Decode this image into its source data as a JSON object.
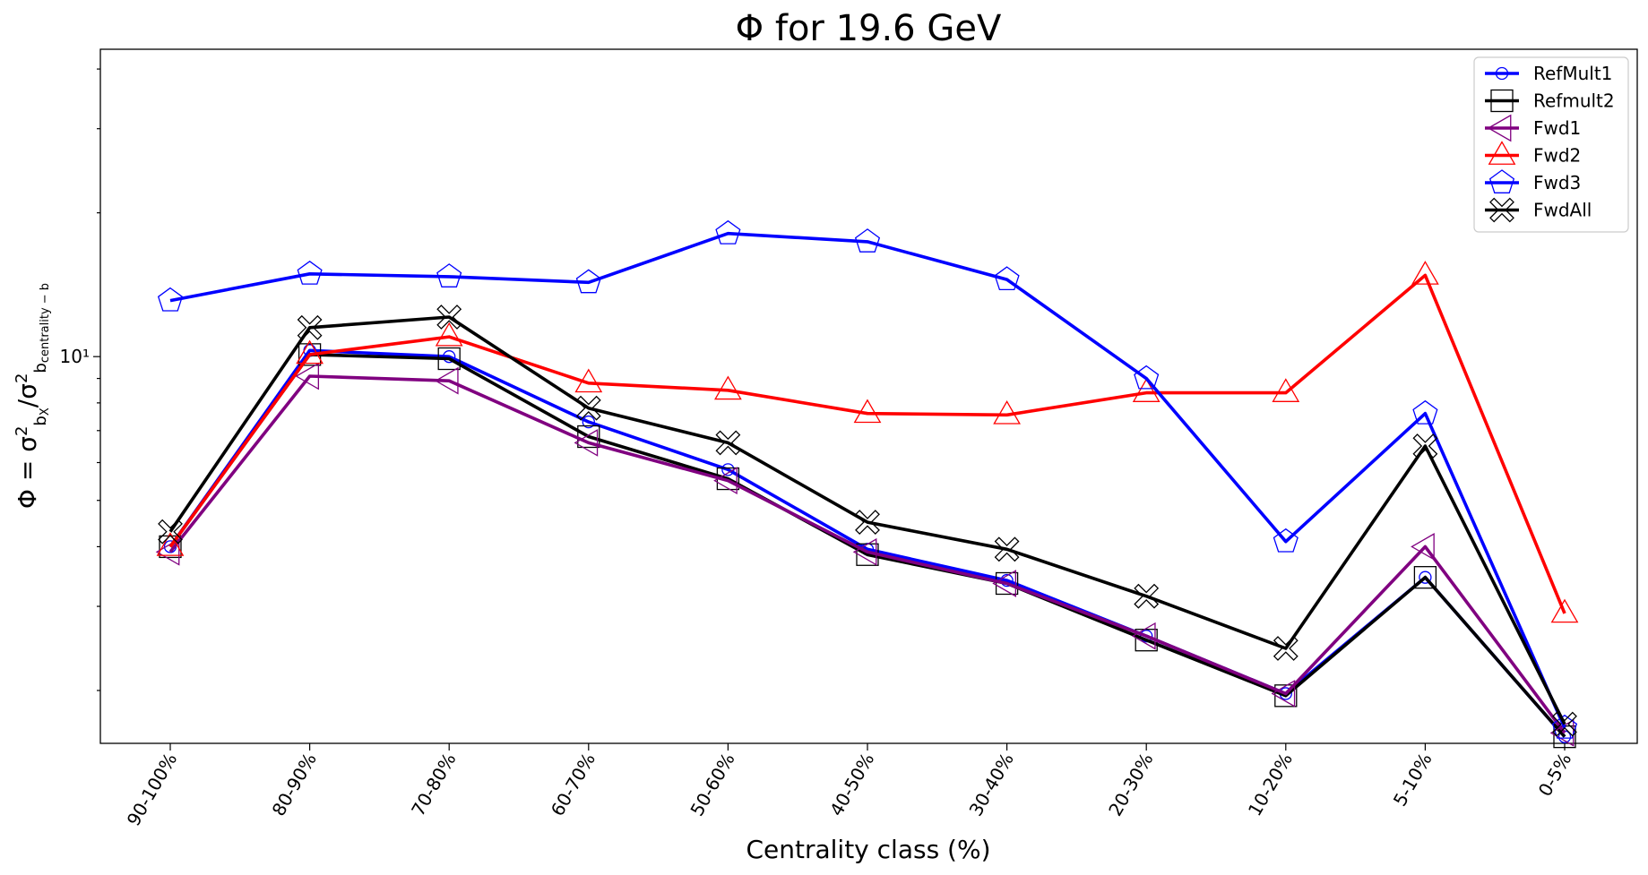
{
  "chart_data": {
    "type": "line",
    "title": "Φ for 19.6 GeV",
    "xlabel": "Centrality class (%)",
    "ylabel": "Φ = σ²_{b_X}/σ²_{b_centrality − b}",
    "yscale": "log",
    "ylim": [
      1.55,
      44
    ],
    "y_tick_label": "10¹",
    "categories": [
      "90-100%",
      "80-90%",
      "70-80%",
      "60-70%",
      "50-60%",
      "40-50%",
      "30-40%",
      "20-30%",
      "10-20%",
      "5-10%",
      "0-5%"
    ],
    "legend_position": "top-right",
    "grid": false,
    "series": [
      {
        "name": "RefMult1",
        "color": "#0000ff",
        "marker": "circle",
        "values": [
          4.0,
          10.3,
          10.0,
          7.3,
          5.8,
          3.95,
          3.4,
          2.6,
          1.97,
          3.45,
          1.6
        ]
      },
      {
        "name": "Refmult2",
        "color": "#000000",
        "marker": "square",
        "values": [
          4.0,
          10.1,
          9.9,
          6.8,
          5.55,
          3.85,
          3.35,
          2.55,
          1.95,
          3.45,
          1.6
        ]
      },
      {
        "name": "Fwd1",
        "color": "#800080",
        "marker": "triangle-left",
        "values": [
          3.9,
          9.1,
          8.9,
          6.6,
          5.5,
          3.9,
          3.35,
          2.6,
          1.97,
          4.0,
          1.63
        ]
      },
      {
        "name": "Fwd2",
        "color": "#ff0000",
        "marker": "triangle-up",
        "values": [
          4.0,
          10.1,
          11.0,
          8.8,
          8.5,
          7.6,
          7.55,
          8.4,
          8.4,
          14.8,
          2.9
        ]
      },
      {
        "name": "Fwd3",
        "color": "#0000ff",
        "marker": "pentagon",
        "values": [
          13.1,
          14.9,
          14.7,
          14.3,
          18.1,
          17.4,
          14.5,
          9.0,
          4.1,
          7.6,
          1.67
        ]
      },
      {
        "name": "FwdAll",
        "color": "#000000",
        "marker": "x",
        "values": [
          4.3,
          11.5,
          12.1,
          7.8,
          6.6,
          4.5,
          3.95,
          3.15,
          2.45,
          6.5,
          1.7
        ]
      }
    ]
  }
}
